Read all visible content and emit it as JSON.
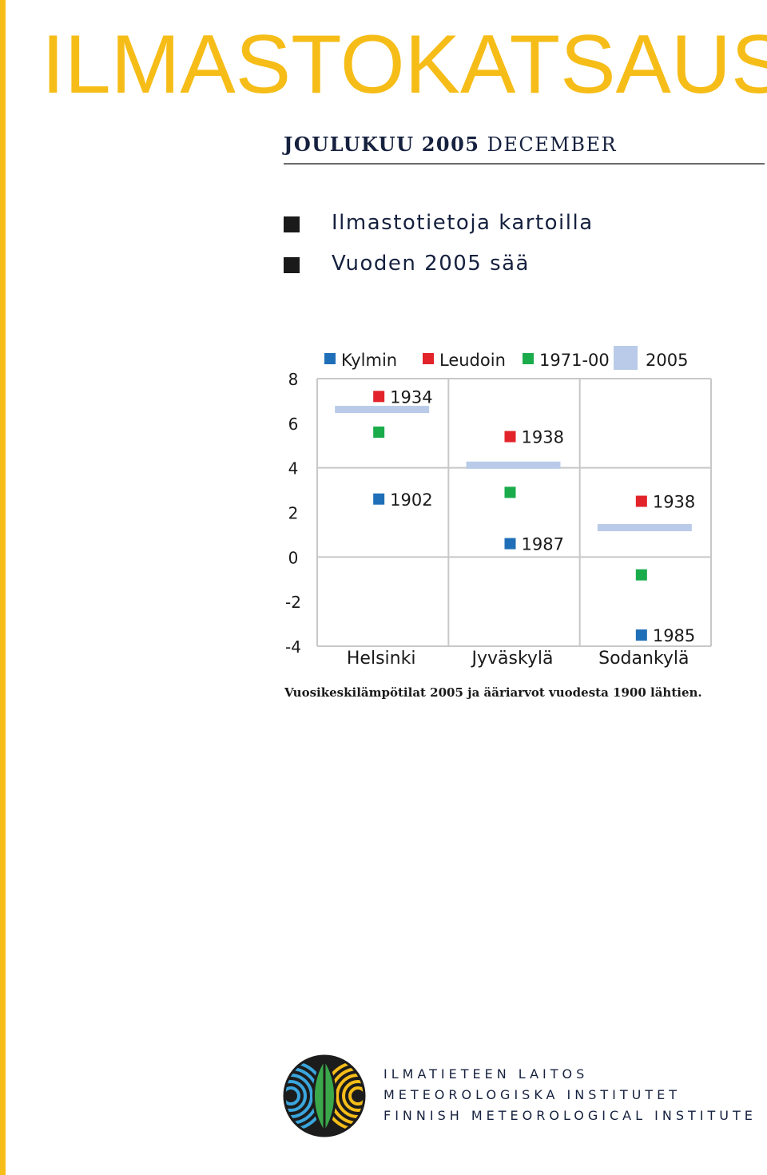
{
  "header": {
    "title": "ILMASTOKATSAUS",
    "issue_month_fi": "JOULUKUU",
    "issue_year": "2005",
    "issue_month_en": "DECEMBER"
  },
  "toc": [
    {
      "label": "Ilmastotietoja kartoilla"
    },
    {
      "label": "Vuoden 2005 sää"
    }
  ],
  "colors": {
    "brand_yellow": "#f6bd18",
    "kylmin": "#1f6fb8",
    "leudoin": "#e2232a",
    "normal": "#1aac4b",
    "year2005": "#b9cbe8"
  },
  "chart_data": {
    "type": "scatter",
    "legend": [
      "Kylmin",
      "Leudoin",
      "1971-00",
      "2005"
    ],
    "legend_position": "top",
    "categories": [
      "Helsinki",
      "Jyväskylä",
      "Sodankylä"
    ],
    "yticks": [
      "8",
      "6",
      "4",
      "2",
      "0",
      "-2",
      "-4"
    ],
    "ylim": [
      -4,
      8
    ],
    "grid": true,
    "series": [
      {
        "name": "Kylmin",
        "values": [
          2.6,
          0.6,
          -3.5
        ],
        "labels": [
          "1902",
          "1987",
          "1985"
        ]
      },
      {
        "name": "Leudoin",
        "values": [
          7.2,
          5.4,
          2.5
        ],
        "labels": [
          "1934",
          "1938",
          "1938"
        ]
      },
      {
        "name": "1971-00",
        "values": [
          5.6,
          2.9,
          -0.8
        ]
      },
      {
        "name": "2005",
        "values": [
          6.6,
          4.1,
          1.3
        ]
      }
    ]
  },
  "caption": "Vuosikeskilämpötilat 2005 ja ääriarvot vuodesta 1900 lähtien.",
  "footer": {
    "org_fi": "ILMATIETEEN LAITOS",
    "org_sv": "METEOROLOGISKA INSTITUTET",
    "org_en": "FINNISH METEOROLOGICAL INSTITUTE",
    "logo": "fmi-logo"
  }
}
